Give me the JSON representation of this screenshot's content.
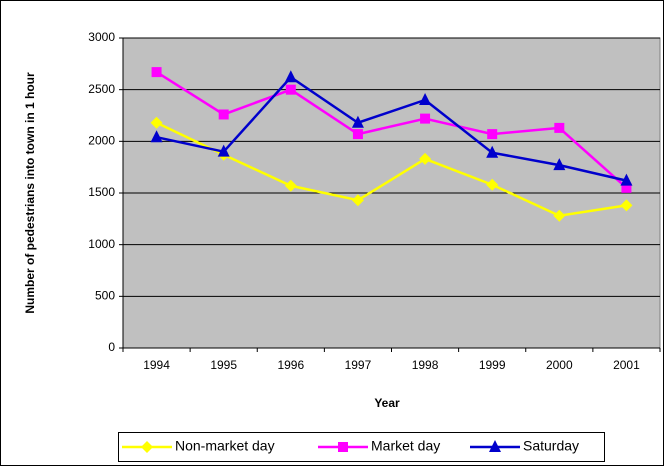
{
  "chart_data": {
    "type": "line",
    "x_label": "Year",
    "y_label": "Number of pedestrians into town in 1 hour",
    "categories": [
      "1994",
      "1995",
      "1996",
      "1997",
      "1998",
      "1999",
      "2000",
      "2001"
    ],
    "series": [
      {
        "name": "Non-market day",
        "color": "#ffff00",
        "marker": "diamond",
        "values": [
          2180,
          1870,
          1570,
          1430,
          1830,
          1580,
          1280,
          1380
        ]
      },
      {
        "name": "Market day",
        "color": "#ff00ff",
        "marker": "square",
        "values": [
          2670,
          2260,
          2500,
          2070,
          2220,
          2070,
          2130,
          1550
        ]
      },
      {
        "name": "Saturday",
        "color": "#0000cc",
        "marker": "triangle",
        "values": [
          2040,
          1900,
          2620,
          2180,
          2400,
          1890,
          1770,
          1620
        ]
      }
    ],
    "ylim": [
      0,
      3000
    ],
    "yticks": [
      0,
      500,
      1000,
      1500,
      2000,
      2500,
      3000
    ],
    "grid": true,
    "legend": "bottom",
    "background": "#c0c0c0"
  }
}
